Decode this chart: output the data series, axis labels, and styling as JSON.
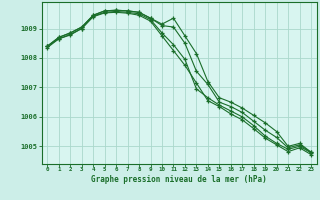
{
  "background_color": "#cceee8",
  "plot_bg_color": "#d8f5f0",
  "grid_color": "#aad8cc",
  "line_color": "#1a6e2a",
  "title": "Graphe pression niveau de la mer (hPa)",
  "xlim": [
    -0.5,
    23.5
  ],
  "ylim": [
    1004.4,
    1009.9
  ],
  "yticks": [
    1005,
    1006,
    1007,
    1008,
    1009
  ],
  "xticks": [
    0,
    1,
    2,
    3,
    4,
    5,
    6,
    7,
    8,
    9,
    10,
    11,
    12,
    13,
    14,
    15,
    16,
    17,
    18,
    19,
    20,
    21,
    22,
    23
  ],
  "series": [
    {
      "x": [
        0,
        1,
        2,
        3,
        4,
        5,
        6,
        7,
        8,
        9,
        10,
        11,
        12,
        13,
        14,
        15,
        16,
        17,
        18,
        19,
        20,
        21,
        22,
        23
      ],
      "y": [
        1008.4,
        1008.7,
        1008.85,
        1009.05,
        1009.45,
        1009.6,
        1009.62,
        1009.6,
        1009.55,
        1009.35,
        1009.15,
        1009.35,
        1008.75,
        1008.15,
        1007.2,
        1006.65,
        1006.5,
        1006.3,
        1006.05,
        1005.8,
        1005.5,
        1005.0,
        1005.1,
        1004.8
      ]
    },
    {
      "x": [
        0,
        1,
        2,
        3,
        4,
        5,
        6,
        7,
        8,
        9,
        10,
        11,
        12,
        13,
        14,
        15,
        16,
        17,
        18,
        19,
        20,
        21,
        22,
        23
      ],
      "y": [
        1008.4,
        1008.7,
        1008.85,
        1009.05,
        1009.45,
        1009.6,
        1009.62,
        1009.6,
        1009.55,
        1009.35,
        1009.1,
        1009.05,
        1008.5,
        1007.55,
        1007.1,
        1006.5,
        1006.35,
        1006.15,
        1005.85,
        1005.55,
        1005.3,
        1004.95,
        1005.05,
        1004.8
      ]
    },
    {
      "x": [
        0,
        1,
        2,
        3,
        4,
        5,
        6,
        7,
        8,
        9,
        10,
        11,
        12,
        13,
        14,
        15,
        16,
        17,
        18,
        19,
        20,
        21,
        22,
        23
      ],
      "y": [
        1008.4,
        1008.65,
        1008.8,
        1009.0,
        1009.42,
        1009.55,
        1009.58,
        1009.55,
        1009.5,
        1009.3,
        1008.85,
        1008.45,
        1007.95,
        1006.95,
        1006.65,
        1006.4,
        1006.2,
        1006.0,
        1005.7,
        1005.35,
        1005.1,
        1004.9,
        1005.0,
        1004.78
      ]
    },
    {
      "x": [
        0,
        1,
        2,
        3,
        4,
        5,
        6,
        7,
        8,
        9,
        10,
        11,
        12,
        13,
        14,
        15,
        16,
        17,
        18,
        19,
        20,
        21,
        22,
        23
      ],
      "y": [
        1008.35,
        1008.65,
        1008.78,
        1009.0,
        1009.4,
        1009.53,
        1009.55,
        1009.52,
        1009.45,
        1009.25,
        1008.75,
        1008.25,
        1007.75,
        1007.15,
        1006.55,
        1006.35,
        1006.1,
        1005.9,
        1005.6,
        1005.28,
        1005.05,
        1004.82,
        1004.95,
        1004.72
      ]
    }
  ]
}
